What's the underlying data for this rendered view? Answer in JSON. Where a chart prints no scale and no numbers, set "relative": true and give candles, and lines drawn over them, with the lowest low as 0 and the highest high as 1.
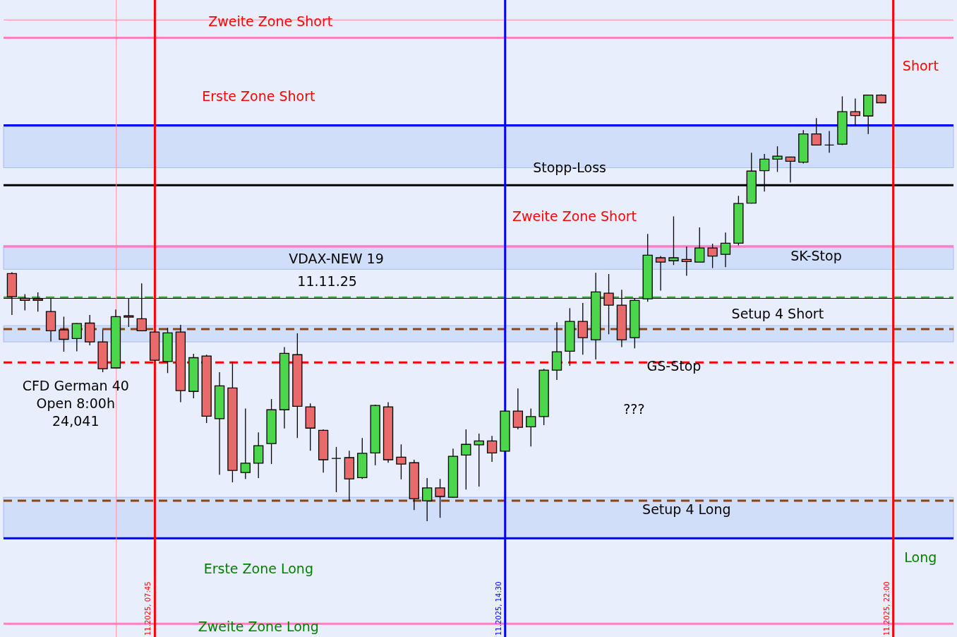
{
  "chart_data": {
    "type": "candlestick",
    "relative": true,
    "categories": [
      null,
      null,
      null,
      null,
      null,
      null,
      null,
      null,
      null,
      null,
      null,
      null,
      null,
      null,
      null,
      null,
      null,
      null,
      null,
      null,
      null,
      null,
      null,
      null,
      null,
      null,
      null,
      null,
      null,
      null,
      null,
      null,
      null,
      null,
      null,
      null,
      null,
      null,
      null,
      null,
      null,
      null,
      null,
      null,
      null,
      null,
      null,
      null,
      null,
      null,
      null,
      null,
      null,
      null,
      null,
      null,
      null,
      null,
      null,
      null,
      null,
      null,
      null,
      null,
      null,
      null,
      null,
      null
    ],
    "ohlc": [
      [
        0.58,
        0.583,
        0.483,
        0.526
      ],
      [
        0.522,
        0.532,
        0.494,
        0.517
      ],
      [
        0.521,
        0.536,
        0.491,
        0.517
      ],
      [
        0.491,
        0.521,
        0.421,
        0.446
      ],
      [
        0.448,
        0.479,
        0.397,
        0.426
      ],
      [
        0.428,
        0.464,
        0.398,
        0.463
      ],
      [
        0.464,
        0.483,
        0.412,
        0.42
      ],
      [
        0.42,
        0.448,
        0.349,
        0.357
      ],
      [
        0.359,
        0.496,
        0.359,
        0.479
      ],
      [
        0.481,
        0.521,
        0.455,
        0.478
      ],
      [
        0.474,
        0.557,
        0.446,
        0.446
      ],
      [
        0.443,
        0.443,
        0.377,
        0.377
      ],
      [
        0.374,
        0.453,
        0.347,
        0.441
      ],
      [
        0.443,
        0.46,
        0.279,
        0.306
      ],
      [
        0.304,
        0.392,
        0.288,
        0.383
      ],
      [
        0.387,
        0.39,
        0.23,
        0.246
      ],
      [
        0.24,
        0.349,
        0.109,
        0.317
      ],
      [
        0.312,
        0.374,
        0.091,
        0.119
      ],
      [
        0.114,
        0.264,
        0.099,
        0.136
      ],
      [
        0.136,
        0.208,
        0.101,
        0.177
      ],
      [
        0.182,
        0.286,
        0.134,
        0.261
      ],
      [
        0.261,
        0.408,
        0.217,
        0.393
      ],
      [
        0.39,
        0.44,
        0.195,
        0.269
      ],
      [
        0.268,
        0.276,
        0.165,
        0.218
      ],
      [
        0.213,
        0.215,
        0.114,
        0.144
      ],
      [
        0.147,
        0.174,
        0.068,
        0.147
      ],
      [
        0.149,
        0.165,
        0.048,
        0.099
      ],
      [
        0.102,
        0.195,
        0.099,
        0.159
      ],
      [
        0.16,
        0.273,
        0.131,
        0.271
      ],
      [
        0.268,
        0.279,
        0.137,
        0.144
      ],
      [
        0.15,
        0.18,
        0.098,
        0.134
      ],
      [
        0.137,
        0.144,
        0.026,
        0.053
      ],
      [
        0.048,
        0.101,
        0.0,
        0.078
      ],
      [
        0.078,
        0.099,
        0.008,
        0.058
      ],
      [
        0.056,
        0.17,
        0.055,
        0.152
      ],
      [
        0.155,
        0.215,
        0.074,
        0.18
      ],
      [
        0.179,
        0.205,
        0.081,
        0.188
      ],
      [
        0.188,
        0.2,
        0.139,
        0.16
      ],
      [
        0.164,
        0.258,
        0.164,
        0.258
      ],
      [
        0.258,
        0.311,
        0.215,
        0.22
      ],
      [
        0.221,
        0.264,
        0.175,
        0.245
      ],
      [
        0.245,
        0.357,
        0.225,
        0.354
      ],
      [
        0.354,
        0.466,
        0.331,
        0.397
      ],
      [
        0.398,
        0.499,
        0.364,
        0.468
      ],
      [
        0.468,
        0.511,
        0.39,
        0.43
      ],
      [
        0.425,
        0.582,
        0.379,
        0.537
      ],
      [
        0.534,
        0.579,
        0.438,
        0.506
      ],
      [
        0.506,
        0.542,
        0.408,
        0.425
      ],
      [
        0.43,
        0.522,
        0.405,
        0.517
      ],
      [
        0.521,
        0.673,
        0.514,
        0.623
      ],
      [
        0.617,
        0.621,
        0.54,
        0.607
      ],
      [
        0.61,
        0.714,
        0.6,
        0.617
      ],
      [
        0.613,
        0.643,
        0.575,
        0.608
      ],
      [
        0.607,
        0.688,
        0.607,
        0.64
      ],
      [
        0.64,
        0.65,
        0.593,
        0.621
      ],
      [
        0.625,
        0.676,
        0.595,
        0.651
      ],
      [
        0.651,
        0.762,
        0.646,
        0.744
      ],
      [
        0.745,
        0.863,
        0.744,
        0.82
      ],
      [
        0.821,
        0.86,
        0.772,
        0.848
      ],
      [
        0.848,
        0.878,
        0.818,
        0.855
      ],
      [
        0.853,
        0.853,
        0.793,
        0.843
      ],
      [
        0.841,
        0.916,
        0.838,
        0.907
      ],
      [
        0.907,
        0.944,
        0.881,
        0.881
      ],
      [
        0.881,
        0.914,
        0.863,
        0.881
      ],
      [
        0.883,
        0.995,
        0.881,
        0.959
      ],
      [
        0.959,
        0.99,
        0.927,
        0.95
      ],
      [
        0.949,
        0.998,
        0.907,
        0.998
      ],
      [
        0.998,
        1.0,
        0.979,
        0.98
      ]
    ],
    "colors": [
      "#e86a6a",
      "#e86a6a",
      "#e86a6a",
      "#e86a6a",
      "#e86a6a",
      "#4cd64c",
      "#e86a6a",
      "#e86a6a",
      "#4cd64c",
      "#e86a6a",
      "#e86a6a",
      "#e86a6a",
      "#4cd64c",
      "#e86a6a",
      "#4cd64c",
      "#e86a6a",
      "#4cd64c",
      "#e86a6a",
      "#4cd64c",
      "#4cd64c",
      "#4cd64c",
      "#4cd64c",
      "#e86a6a",
      "#e86a6a",
      "#e86a6a",
      "#000000",
      "#e86a6a",
      "#4cd64c",
      "#4cd64c",
      "#e86a6a",
      "#e86a6a",
      "#e86a6a",
      "#4cd64c",
      "#e86a6a",
      "#4cd64c",
      "#4cd64c",
      "#4cd64c",
      "#e86a6a",
      "#4cd64c",
      "#e86a6a",
      "#4cd64c",
      "#4cd64c",
      "#4cd64c",
      "#4cd64c",
      "#e86a6a",
      "#4cd64c",
      "#e86a6a",
      "#e86a6a",
      "#4cd64c",
      "#4cd64c",
      "#e86a6a",
      "#4cd64c",
      "#e86a6a",
      "#4cd64c",
      "#e86a6a",
      "#4cd64c",
      "#4cd64c",
      "#4cd64c",
      "#4cd64c",
      "#4cd64c",
      "#e86a6a",
      "#4cd64c",
      "#e86a6a",
      "#000000",
      "#4cd64c",
      "#e86a6a",
      "#4cd64c",
      "#e86a6a"
    ],
    "ref_lines": [
      {
        "axis": "y",
        "value": 1.174,
        "label": null,
        "color": "#ff9090",
        "line_style": "solid"
      },
      {
        "axis": "y",
        "value": 1.132,
        "label": "Zweite Zone Short",
        "color": "#ff80c0",
        "line_style": "solid"
      },
      {
        "axis": "y",
        "value": 0.927,
        "label": "Erste Zone Short",
        "color": "#0000ff",
        "line_style": "solid"
      },
      {
        "axis": "y",
        "value": 0.787,
        "label": "Stopp-Loss",
        "color": "#000000",
        "line_style": "solid"
      },
      {
        "axis": "y",
        "value": 0.643,
        "label": "Zweite Zone Short",
        "color": "#ff80c0",
        "line_style": "solid"
      },
      {
        "axis": "y",
        "value": 0.524,
        "label": null,
        "color": "#40b040",
        "line_style": "dashed"
      },
      {
        "axis": "y",
        "value": 0.522,
        "label": null,
        "color": "#000000",
        "line_style": "solid"
      },
      {
        "axis": "y",
        "value": 0.45,
        "label": "Setup 4 Short",
        "color": "#8b4513",
        "line_style": "dashed"
      },
      {
        "axis": "y",
        "value": 0.372,
        "label": null,
        "color": "#ff0000",
        "line_style": "dashed"
      },
      {
        "axis": "y",
        "value": 0.048,
        "label": "Setup 4 Long",
        "color": "#8b4513",
        "line_style": "dashed"
      },
      {
        "axis": "y",
        "value": -0.04,
        "label": "Erste Zone Long",
        "color": "#0000ff",
        "line_style": "solid"
      },
      {
        "axis": "y",
        "value": -0.24,
        "label": "Zweite Zone Long",
        "color": "#ff80c0",
        "line_style": "solid"
      },
      {
        "axis": "x",
        "label": null,
        "color": "#ff9090",
        "line_style": "solid"
      },
      {
        "axis": "x",
        "label": "11.2025, 07:45",
        "color": "#ff0000",
        "line_style": "solid"
      },
      {
        "axis": "x",
        "label": "11.2025, 14:30",
        "color": "#0000ff",
        "line_style": "solid"
      },
      {
        "axis": "x",
        "label": "11.2025, 22:00",
        "color": "#ff0000",
        "line_style": "solid"
      }
    ],
    "bands": [
      {
        "axis": "y",
        "from": 0.828,
        "to": 0.924,
        "label": null,
        "color": "#c8d8fa"
      },
      {
        "axis": "y",
        "from": -0.04,
        "to": 0.056,
        "label": null,
        "color": "#c8d8fa"
      },
      {
        "axis": "y",
        "from": 0.42,
        "to": 0.458,
        "label": null,
        "color": "#c8d8fa"
      },
      {
        "axis": "y",
        "from": 0.59,
        "to": 0.646,
        "label": null,
        "color": "#c8d8fa"
      }
    ],
    "annotations": [
      "VDAX-NEW 19",
      "11.11.25",
      "CFD German 40\nOpen 8:00h\n24,041",
      "???",
      "SK-Stop",
      "GS-Stop",
      "Short",
      "Long"
    ]
  }
}
